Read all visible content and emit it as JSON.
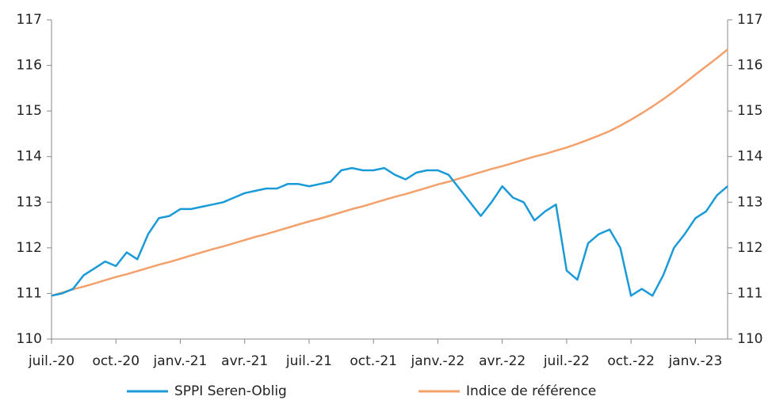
{
  "chart_data": {
    "type": "line",
    "categories": [
      "juil.-20",
      null,
      null,
      null,
      null,
      null,
      "oct.-20",
      null,
      null,
      null,
      null,
      null,
      "janv.-21",
      null,
      null,
      null,
      null,
      null,
      "avr.-21",
      null,
      null,
      null,
      null,
      null,
      "juil.-21",
      null,
      null,
      null,
      null,
      null,
      "oct.-21",
      null,
      null,
      null,
      null,
      null,
      "janv.-22",
      null,
      null,
      null,
      null,
      null,
      "avr.-22",
      null,
      null,
      null,
      null,
      null,
      "juil.-22",
      null,
      null,
      null,
      null,
      null,
      "oct.-22",
      null,
      null,
      null,
      null,
      null,
      "janv.-23",
      null,
      null,
      null
    ],
    "series": [
      {
        "name": "SPPI Seren-Oblig",
        "color": "#1a9bd7",
        "values": [
          110.95,
          111.0,
          111.1,
          111.4,
          111.55,
          111.7,
          111.6,
          111.9,
          111.75,
          112.3,
          112.65,
          112.7,
          112.85,
          112.85,
          112.9,
          112.95,
          113.0,
          113.1,
          113.2,
          113.25,
          113.3,
          113.3,
          113.4,
          113.4,
          113.35,
          113.4,
          113.45,
          113.7,
          113.75,
          113.7,
          113.7,
          113.75,
          113.6,
          113.5,
          113.65,
          113.7,
          113.7,
          113.6,
          113.3,
          113.0,
          112.7,
          113.0,
          113.35,
          113.1,
          113.0,
          112.6,
          112.8,
          112.95,
          111.5,
          111.3,
          112.1,
          112.3,
          112.4,
          112.0,
          110.95,
          111.1,
          110.95,
          111.4,
          112.0,
          112.3,
          112.65,
          112.8,
          113.15,
          113.35
        ]
      },
      {
        "name": "Indice de référence",
        "color": "#f4a06b",
        "values": [
          110.95,
          111.02,
          111.09,
          111.15,
          111.22,
          111.29,
          111.36,
          111.42,
          111.49,
          111.56,
          111.63,
          111.69,
          111.76,
          111.83,
          111.9,
          111.97,
          112.03,
          112.1,
          112.17,
          112.24,
          112.3,
          112.37,
          112.44,
          112.51,
          112.58,
          112.64,
          112.71,
          112.78,
          112.85,
          112.91,
          112.98,
          113.05,
          113.12,
          113.18,
          113.25,
          113.32,
          113.39,
          113.45,
          113.52,
          113.59,
          113.66,
          113.73,
          113.79,
          113.86,
          113.93,
          114.0,
          114.06,
          114.13,
          114.2,
          114.28,
          114.37,
          114.46,
          114.56,
          114.68,
          114.81,
          114.95,
          115.1,
          115.26,
          115.43,
          115.61,
          115.8,
          115.98,
          116.16,
          116.35
        ]
      }
    ],
    "ylim": [
      110,
      117
    ],
    "yticks": [
      110,
      111,
      112,
      113,
      114,
      115,
      116,
      117
    ],
    "y2lim": [
      110,
      117
    ],
    "y2ticks": [
      110,
      111,
      112,
      113,
      114,
      115,
      116,
      117
    ],
    "legend": "bottom"
  }
}
